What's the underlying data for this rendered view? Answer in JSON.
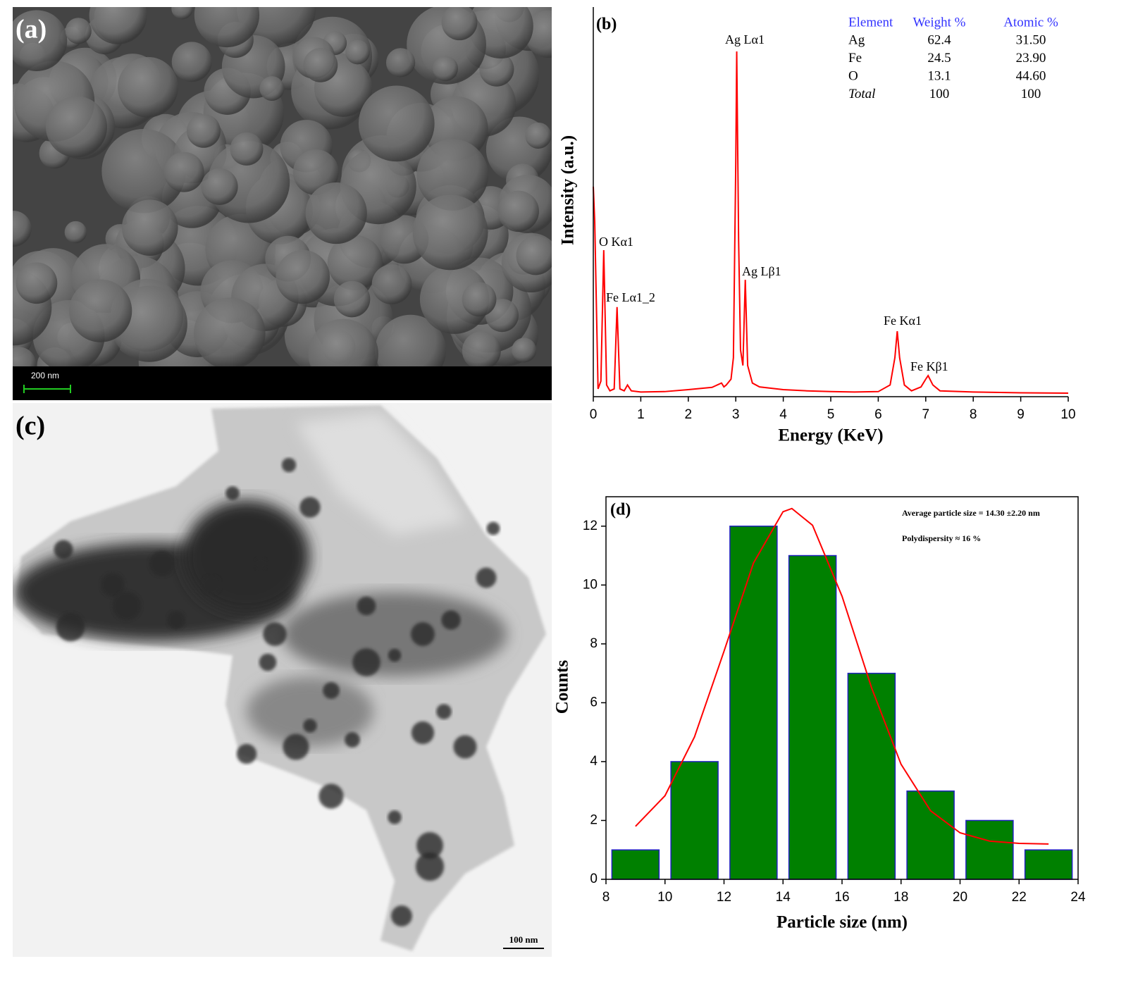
{
  "images": [
    {
      "label": "(a)",
      "scale_bar": "200 nm"
    },
    {
      "label": "(c)",
      "scale_bar": "100 nm"
    }
  ],
  "chart_data": [
    {
      "type": "line",
      "label": "(b)",
      "x_label": "Energy (KeV)",
      "y_label": "Intensity (a.u.)",
      "color": "#ff0000",
      "x": [
        0,
        0.03,
        0.1,
        0.16,
        0.22,
        0.28,
        0.35,
        0.44,
        0.5,
        0.56,
        0.65,
        0.72,
        0.8,
        1.0,
        1.5,
        2.0,
        2.5,
        2.7,
        2.75,
        2.8,
        2.9,
        2.95,
        3.0,
        3.02,
        3.06,
        3.1,
        3.15,
        3.2,
        3.25,
        3.35,
        3.5,
        4.0,
        4.5,
        5.0,
        5.5,
        6.0,
        6.25,
        6.35,
        6.4,
        6.45,
        6.55,
        6.7,
        6.9,
        7.0,
        7.05,
        7.15,
        7.3,
        8.0,
        9.0,
        10.0
      ],
      "values": [
        53.9,
        45,
        2,
        4,
        37.6,
        3,
        1.5,
        2,
        23,
        2,
        1.5,
        3,
        1.5,
        1.2,
        1.3,
        1.8,
        2.4,
        3.5,
        2.5,
        3,
        4.5,
        10,
        60,
        88.6,
        40,
        12,
        8,
        30,
        8,
        3.5,
        2.5,
        1.8,
        1.5,
        1.3,
        1.2,
        1.3,
        3,
        10,
        16.8,
        10,
        3,
        1.5,
        2.5,
        4.5,
        5.4,
        3,
        1.5,
        1.2,
        1.0,
        0.9
      ],
      "xlim": [
        0,
        10
      ],
      "xticks": [
        0,
        1,
        2,
        3,
        4,
        5,
        6,
        7,
        8,
        9,
        10
      ],
      "ylim": [
        0,
        100
      ],
      "annotations": [
        "O Kα1",
        "Fe Lα1_2",
        "Ag Lα1",
        "Ag Lβ1",
        "Fe Kα1",
        "Fe Kβ1"
      ],
      "table": {
        "header": [
          "Element",
          "Weight %",
          "Atomic %"
        ],
        "rows": [
          [
            "Ag",
            "62.4",
            "31.50"
          ],
          [
            "Fe",
            "24.5",
            "23.90"
          ],
          [
            "O",
            "13.1",
            "44.60"
          ],
          [
            "Total",
            "100",
            "100"
          ]
        ]
      }
    },
    {
      "type": "histogram",
      "label": "(d)",
      "x_label": "Particle size (nm)",
      "y_label": "Counts",
      "bins": [
        8,
        10,
        12,
        14,
        16,
        18,
        20,
        22,
        24
      ],
      "values": [
        1,
        4,
        12,
        11,
        7,
        3,
        2,
        1
      ],
      "color": "#008000",
      "edge_color": "#2020c0",
      "xlim": [
        8,
        24
      ],
      "xticks": [
        8,
        10,
        12,
        14,
        16,
        18,
        20,
        22,
        24
      ],
      "ylim": [
        0,
        13
      ],
      "yticks": [
        0,
        2,
        4,
        6,
        8,
        10,
        12
      ],
      "fit": {
        "x": [
          9,
          10,
          11,
          12,
          13,
          14,
          14.3,
          15,
          16,
          17,
          18,
          19,
          20,
          21,
          22,
          23
        ],
        "values": [
          1.8,
          2.84,
          4.84,
          7.75,
          10.75,
          12.49,
          12.6,
          12.03,
          9.62,
          6.51,
          3.91,
          2.33,
          1.58,
          1.3,
          1.22,
          1.2
        ],
        "color": "#ff0000"
      },
      "annotations": [
        "Average particle size = 14.30 ±2.20 nm",
        "Polydispersity  ≈ 16 %"
      ]
    }
  ]
}
